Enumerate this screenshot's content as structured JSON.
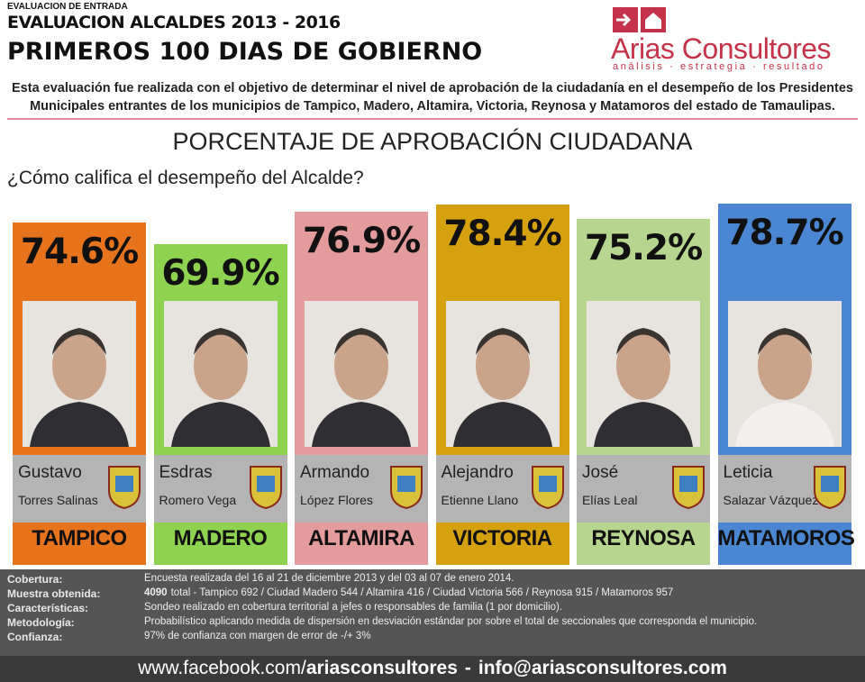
{
  "header": {
    "kicker": "EVALUACION DE ENTRADA",
    "title": "EVALUACION ALCALDES 2013 - 2016",
    "subtitle": "PRIMEROS 100 DIAS DE GOBIERNO",
    "description": [
      "Esta evaluación fue realizada con el objetivo de determinar el nivel de aprobación de la ciudadanía en el desempeño de los Presidentes",
      "Municipales entrantes de los municipios de Tampico, Madero, Altamira, Victoria, Reynosa y Matamoros del estado de Tamaulipas."
    ]
  },
  "logo": {
    "name": "Arias Consultores",
    "tagline": "análisis · estrategia · resultado"
  },
  "chart_data": {
    "type": "bar",
    "title": "PORCENTAJE DE APROBACIÓN CIUDADANA",
    "question": "¿Cómo califica el desempeño del Alcalde?",
    "categories": [
      "TAMPICO",
      "MADERO",
      "ALTAMIRA",
      "VICTORIA",
      "REYNOSA",
      "MATAMOROS"
    ],
    "first_names": [
      "Gustavo",
      "Esdras",
      "Armando",
      "Alejandro",
      "José",
      "Leticia"
    ],
    "last_names": [
      "Torres Salinas",
      "Romero Vega",
      "López Flores",
      "Etienne Llano",
      "Elías Leal",
      "Salazar Vázquez"
    ],
    "values": [
      74.6,
      69.9,
      76.9,
      78.4,
      75.2,
      78.7
    ],
    "value_labels": [
      "74.6%",
      "69.9%",
      "76.9%",
      "78.4%",
      "75.2%",
      "78.7%"
    ],
    "colors": [
      "#e8731d",
      "#8fd24f",
      "#e39b9b",
      "#d5a10f",
      "#b6d690",
      "#4a86d2"
    ]
  },
  "footer": {
    "rows": [
      {
        "label": "Cobertura:",
        "text": "Encuesta realizada del 16 al 21 de diciembre 2013 y del 03 al 07 de enero 2014."
      },
      {
        "label": "Muestra obtenida:",
        "lead": "4090",
        "text": "total  -  Tampico 692 / Ciudad Madero 544 / Altamira 416 / Ciudad Victoria 566 / Reynosa 915 / Matamoros 957"
      },
      {
        "label": "Características:",
        "text": "Sondeo realizado en cobertura territorial a jefes o responsables de familia (1 por domicilio)."
      },
      {
        "label": "Metodología:",
        "text": "Probabilístico aplicando medida de dispersión en desviación estándar por sobre el total de seccionales que corresponda el municipio."
      },
      {
        "label": "Confianza:",
        "text": "97% de confianza con margen de error de -/+ 3%"
      }
    ],
    "contact": [
      "www.facebook.com/",
      "ariasconsultores",
      "-",
      "info@ariasconsultores.com"
    ]
  }
}
